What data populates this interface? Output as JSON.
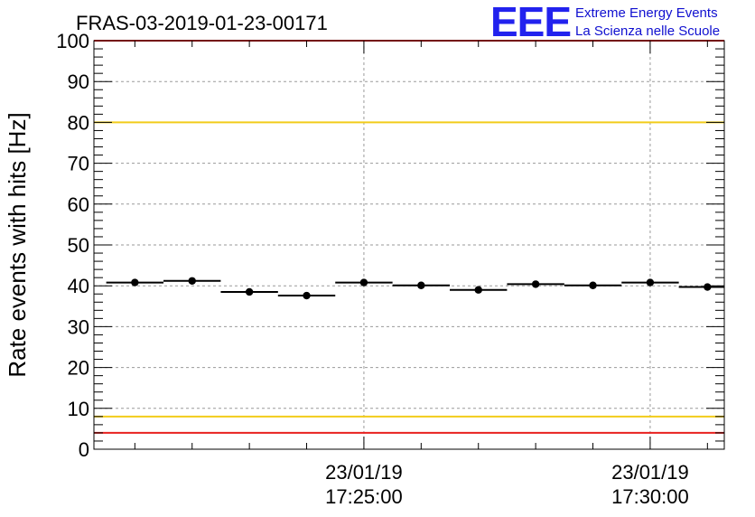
{
  "chart_data": {
    "type": "scatter",
    "title": "FRAS-03-2019-01-23-00171",
    "ylabel": "Rate events with hits [Hz]",
    "xlabel": "",
    "ylim": [
      0,
      100
    ],
    "yticks": [
      0,
      10,
      20,
      30,
      40,
      50,
      60,
      70,
      80,
      90,
      100
    ],
    "xtick_labels": [
      {
        "date": "23/01/19",
        "time": "17:25:00"
      },
      {
        "date": "23/01/19",
        "time": "17:30:00"
      }
    ],
    "grid": true,
    "series": [
      {
        "x": [
          "17:21:00",
          "17:22:00",
          "17:23:00",
          "17:24:00",
          "17:25:00",
          "17:26:00",
          "17:27:00",
          "17:28:00",
          "17:29:00",
          "17:30:00",
          "17:31:00"
        ],
        "values": [
          40.8,
          41.2,
          38.5,
          37.6,
          40.8,
          40.1,
          39.0,
          40.4,
          40.1,
          40.8,
          39.7
        ]
      }
    ],
    "reference_lines": [
      {
        "y": 100,
        "color": "#e8211f"
      },
      {
        "y": 80,
        "color": "#f2cc1a"
      },
      {
        "y": 8,
        "color": "#f2cc1a"
      },
      {
        "y": 4,
        "color": "#e8211f"
      }
    ]
  },
  "logo": {
    "letters": "EEE",
    "line1": "Extreme Energy Events",
    "line2": "La Scienza nelle Scuole",
    "color": "#2222ee"
  }
}
